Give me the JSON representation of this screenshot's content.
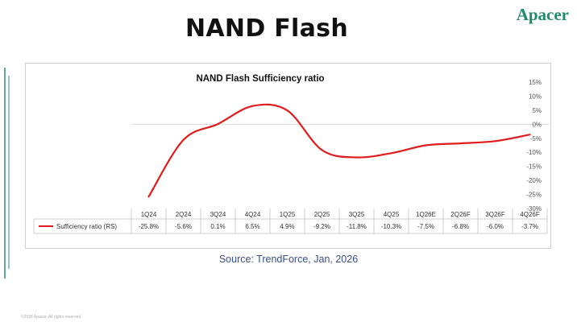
{
  "page": {
    "title": "NAND Flash",
    "logo": "Apacer",
    "source": "Source: TrendForce, Jan, 2026",
    "footer": "©2026 Apacer. All rights reserved."
  },
  "colors": {
    "series_line": "#e01b1b",
    "logo": "#1f8a6b",
    "source_text": "#3a4f8a",
    "zero_line": "#d9d9d9"
  },
  "chart_data": {
    "type": "line",
    "title": "NAND Flash Sufficiency ratio",
    "categories": [
      "1Q24",
      "2Q24",
      "3Q24",
      "4Q24",
      "1Q25",
      "2Q25",
      "3Q25",
      "4Q25",
      "1Q26E",
      "2Q26F",
      "3Q26F",
      "4Q26F"
    ],
    "series": [
      {
        "name": "Sufficiency ratio (RS)",
        "values": [
          -25.8,
          -5.6,
          0.1,
          6.5,
          4.9,
          -9.2,
          -11.8,
          -10.3,
          -7.5,
          -6.8,
          -6.0,
          -3.7
        ],
        "labels": [
          "-25.8%",
          "-5.6%",
          "0.1%",
          "6.5%",
          "4.9%",
          "-9.2%",
          "-11.8%",
          "-10.3%",
          "-7.5%",
          "-6.8%",
          "-6.0%",
          "-3.7%"
        ]
      }
    ],
    "y_axis": {
      "position": "right",
      "ylim": [
        -30,
        15
      ],
      "ticks": [
        15,
        10,
        5,
        0,
        -5,
        -10,
        -15,
        -20,
        -25,
        -30
      ],
      "tick_labels": [
        "15%",
        "10%",
        "5%",
        "0%",
        "-5%",
        "-10%",
        "-15%",
        "-20%",
        "-25%",
        "-30%"
      ]
    },
    "xlabel": "",
    "ylabel": "",
    "legend": "data-table",
    "grid": false
  }
}
